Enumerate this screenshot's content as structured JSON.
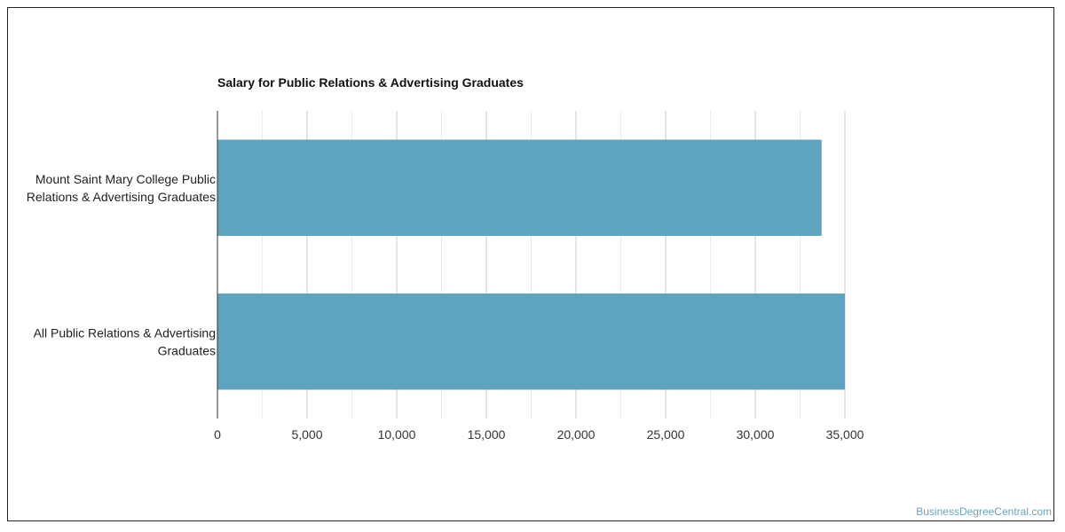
{
  "chart_data": {
    "type": "bar",
    "orientation": "horizontal",
    "title": "Salary for Public Relations & Advertising Graduates",
    "categories": [
      [
        "Mount Saint Mary College Public",
        "Relations & Advertising Graduates"
      ],
      [
        "All Public Relations & Advertising",
        "Graduates"
      ]
    ],
    "values": [
      33700,
      35000
    ],
    "xlim": [
      0,
      35000
    ],
    "xticks": [
      0,
      5000,
      10000,
      15000,
      20000,
      25000,
      30000,
      35000
    ],
    "xtick_labels": [
      "0",
      "5,000",
      "10,000",
      "15,000",
      "20,000",
      "25,000",
      "30,000",
      "35,000"
    ],
    "bar_color": "#5ea3c0",
    "grid": true,
    "legend": "none"
  },
  "watermark": "BusinessDegreeCentral.com"
}
